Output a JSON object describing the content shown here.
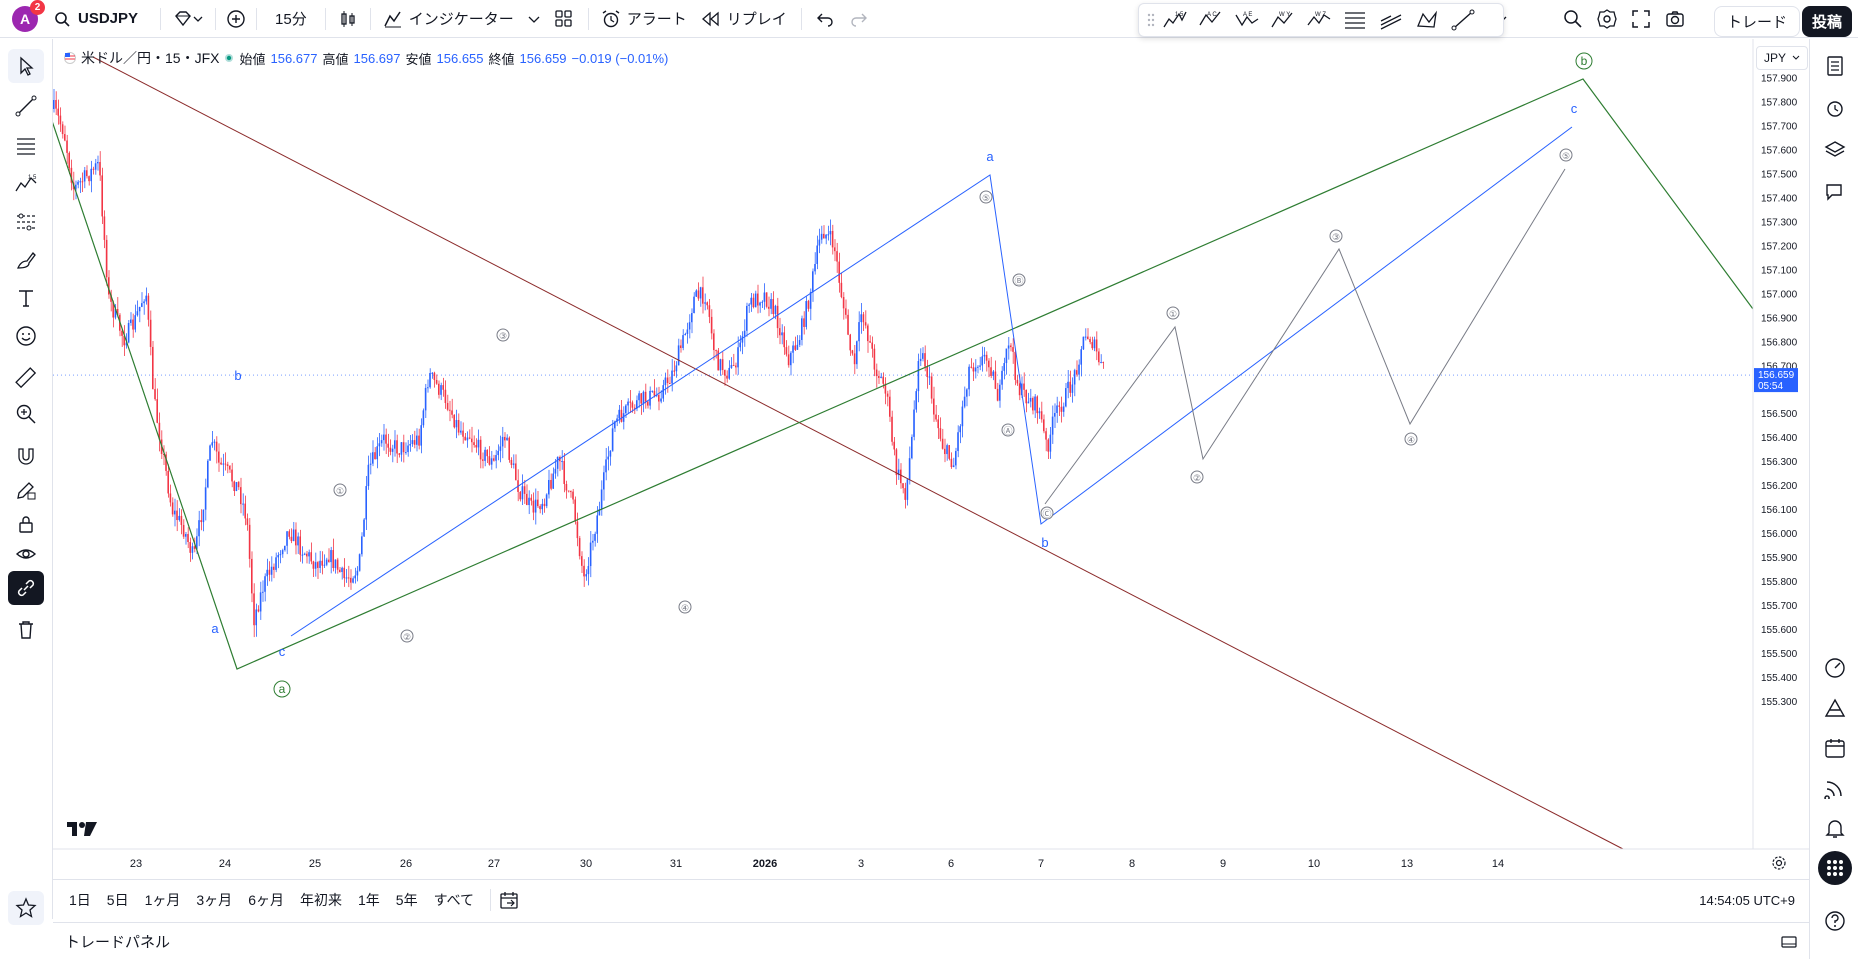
{
  "header": {
    "avatar_letter": "A",
    "notification_count": "2",
    "symbol": "USDJPY",
    "interval": "15分",
    "indicators_label": "インジケーター",
    "alert_label": "アラート",
    "replay_label": "リプレイ",
    "trade_label": "トレード",
    "publish_label": "投稿",
    "drawing_tools": [
      "elliott-impulse-icon",
      "elliott-correction-icon",
      "elliott-triangle-icon",
      "elliott-double-combo-icon",
      "elliott-triple-combo-icon",
      "fib-icon",
      "fib-channel-icon",
      "pattern-icon",
      "trendline-icon"
    ]
  },
  "legend": {
    "title": "米ドル／円・15・JFX",
    "open_label": "始値",
    "open": "156.677",
    "high_label": "高値",
    "high": "156.697",
    "low_label": "安値",
    "low": "156.655",
    "close_label": "終値",
    "close": "156.659",
    "change": "−0.019 (−0.01%)"
  },
  "price_axis": {
    "currency": "JPY",
    "ticks": [
      "157.900",
      "157.800",
      "157.700",
      "157.600",
      "157.500",
      "157.400",
      "157.300",
      "157.200",
      "157.100",
      "157.000",
      "156.900",
      "156.800",
      "156.700",
      "156.500",
      "156.400",
      "156.300",
      "156.200",
      "156.100",
      "156.000",
      "155.900",
      "155.800",
      "155.700",
      "155.600",
      "155.500",
      "155.400",
      "155.300"
    ],
    "current_price": "156.659",
    "countdown": "05:54"
  },
  "time_axis": {
    "labels": [
      "23",
      "24",
      "25",
      "26",
      "27",
      "30",
      "31",
      "2026",
      "3",
      "6",
      "7",
      "8",
      "9",
      "10",
      "13",
      "14"
    ]
  },
  "wave_labels": {
    "blue": [
      "a",
      "b",
      "c",
      "a",
      "b",
      "c"
    ],
    "green": [
      "a",
      "b"
    ],
    "gray": [
      "①",
      "②",
      "③",
      "④",
      "⑤",
      "Ⓑ",
      "Ⓐ",
      "Ⓒ",
      "①",
      "②",
      "③",
      "④",
      "⑤"
    ]
  },
  "bottom": {
    "ranges": [
      "1日",
      "5日",
      "1ヶ月",
      "3ヶ月",
      "6ヶ月",
      "年初来",
      "1年",
      "5年",
      "すべて"
    ],
    "clock": "14:54:05 UTC+9",
    "trade_panel": "トレードパネル"
  },
  "colors": {
    "up": "#2962ff",
    "down": "#f23645",
    "green": "#2e7d32",
    "blue": "#2962ff",
    "brown": "#8b2a2a",
    "gray": "#787b86"
  }
}
